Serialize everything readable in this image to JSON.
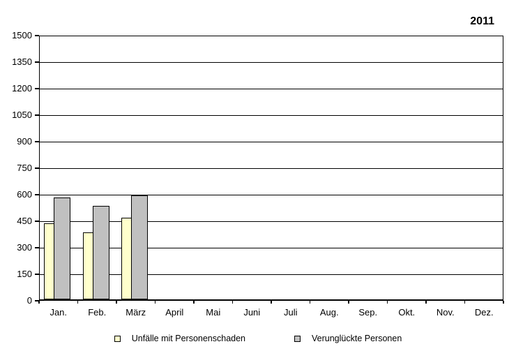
{
  "title": "2011",
  "chart_data": {
    "type": "bar",
    "title": "2011",
    "categories": [
      "Jan.",
      "Feb.",
      "März",
      "April",
      "Mai",
      "Juni",
      "Juli",
      "Aug.",
      "Sep.",
      "Okt.",
      "Nov.",
      "Dez."
    ],
    "series": [
      {
        "name": "Unfälle mit Personenschaden",
        "color": "#FFFFCC",
        "values": [
          430,
          380,
          460,
          null,
          null,
          null,
          null,
          null,
          null,
          null,
          null,
          null
        ]
      },
      {
        "name": "Verunglückte Personen",
        "color": "#C0C0C0",
        "values": [
          575,
          530,
          590,
          null,
          null,
          null,
          null,
          null,
          null,
          null,
          null,
          null
        ]
      }
    ],
    "ylim": [
      0,
      1500
    ],
    "yticks": [
      0,
      150,
      300,
      450,
      600,
      750,
      900,
      1050,
      1200,
      1350,
      1500
    ],
    "grid": true,
    "legend_position": "bottom",
    "axis_color": "#000000",
    "background_color": "#FFFFFF"
  }
}
